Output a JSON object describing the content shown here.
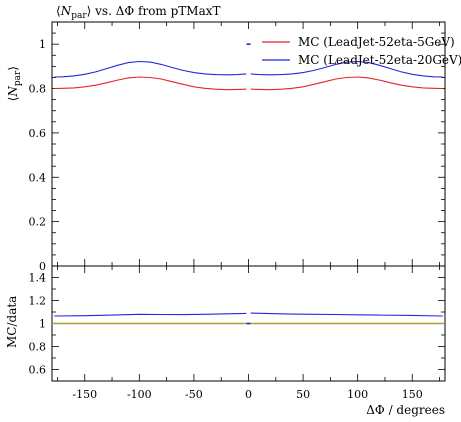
{
  "chart_data": [
    {
      "panel": "main",
      "type": "line",
      "title": "⟨N_par⟩ vs. ΔΦ from pTMaxT",
      "title_parts": {
        "lbracket": "⟨",
        "sym": "N",
        "sub": "par",
        "rbracket": "⟩",
        "rest": " vs. ΔΦ from pTMaxT"
      },
      "ylabel": "⟨N_par⟩",
      "ylabel_parts": {
        "lbracket": "⟨",
        "sym": "N",
        "sub": "par",
        "rbracket": "⟩"
      },
      "xlim": [
        -180,
        180
      ],
      "ylim": [
        0,
        1.1
      ],
      "yticks": [
        0,
        0.2,
        0.4,
        0.6,
        0.8,
        1
      ],
      "ytick_labels": [
        "0",
        "0.2",
        "0.4",
        "0.6",
        "0.8",
        "1"
      ],
      "grid": false,
      "legend_position": "top-right",
      "series": [
        {
          "name": "MC (LeadJet-52eta-5GeV)",
          "color": "#e8232b",
          "x": [
            -178,
            -170,
            -160,
            -150,
            -140,
            -130,
            -120,
            -110,
            -100,
            -90,
            -80,
            -70,
            -60,
            -50,
            -40,
            -30,
            -20,
            -10,
            -2,
            2,
            10,
            20,
            30,
            40,
            50,
            60,
            70,
            80,
            90,
            100,
            110,
            120,
            130,
            140,
            150,
            160,
            170,
            178
          ],
          "values": [
            0.8,
            0.801,
            0.803,
            0.808,
            0.815,
            0.826,
            0.838,
            0.848,
            0.852,
            0.85,
            0.843,
            0.831,
            0.819,
            0.808,
            0.801,
            0.797,
            0.795,
            0.796,
            0.797,
            0.797,
            0.796,
            0.795,
            0.797,
            0.801,
            0.808,
            0.819,
            0.831,
            0.843,
            0.85,
            0.852,
            0.848,
            0.838,
            0.826,
            0.815,
            0.808,
            0.803,
            0.801,
            0.8
          ]
        },
        {
          "name": "MC (LeadJet-52eta-20GeV)",
          "color": "#2626e5",
          "x": [
            -178,
            -170,
            -160,
            -150,
            -140,
            -130,
            -120,
            -110,
            -100,
            -90,
            -80,
            -70,
            -60,
            -50,
            -40,
            -30,
            -20,
            -10,
            -2,
            2,
            10,
            20,
            30,
            40,
            50,
            60,
            70,
            80,
            90,
            100,
            110,
            120,
            130,
            140,
            150,
            160,
            170,
            178
          ],
          "values": [
            0.852,
            0.853,
            0.857,
            0.864,
            0.875,
            0.89,
            0.905,
            0.917,
            0.922,
            0.919,
            0.909,
            0.895,
            0.882,
            0.872,
            0.866,
            0.863,
            0.862,
            0.863,
            0.866,
            0.866,
            0.863,
            0.862,
            0.863,
            0.866,
            0.872,
            0.882,
            0.895,
            0.909,
            0.919,
            0.922,
            0.917,
            0.905,
            0.89,
            0.875,
            0.864,
            0.857,
            0.853,
            0.852
          ]
        }
      ],
      "outliers": [
        {
          "series": "MC (LeadJet-52eta-20GeV)",
          "x": 0,
          "value": 1.0
        }
      ]
    },
    {
      "panel": "ratio",
      "type": "line",
      "ylabel": "MC/data",
      "xlabel": "ΔΦ / degrees",
      "xlim": [
        -180,
        180
      ],
      "ylim": [
        0.5,
        1.5
      ],
      "xticks": [
        -150,
        -100,
        -50,
        0,
        50,
        100,
        150
      ],
      "xtick_labels": [
        "-150",
        "-100",
        "-50",
        "0",
        "50",
        "100",
        "150"
      ],
      "yticks": [
        0.6,
        0.8,
        1,
        1.2,
        1.4
      ],
      "ytick_labels": [
        "0.6",
        "0.8",
        "1",
        "1.2",
        "1.4"
      ],
      "grid": false,
      "reference_line": {
        "value": 1.0,
        "color": "#a8a030"
      },
      "series": [
        {
          "name": "MC (LeadJet-52eta-20GeV)",
          "color": "#2626e5",
          "x": [
            -178,
            -150,
            -120,
            -100,
            -80,
            -60,
            -40,
            -20,
            -2,
            2,
            20,
            40,
            60,
            80,
            100,
            120,
            150,
            178
          ],
          "values": [
            1.065,
            1.068,
            1.075,
            1.08,
            1.078,
            1.077,
            1.08,
            1.084,
            1.088,
            1.09,
            1.086,
            1.082,
            1.08,
            1.078,
            1.076,
            1.073,
            1.07,
            1.065
          ]
        }
      ],
      "outliers": [
        {
          "series": "MC (LeadJet-52eta-20GeV)",
          "x": 0,
          "value": 1.0
        }
      ]
    }
  ]
}
